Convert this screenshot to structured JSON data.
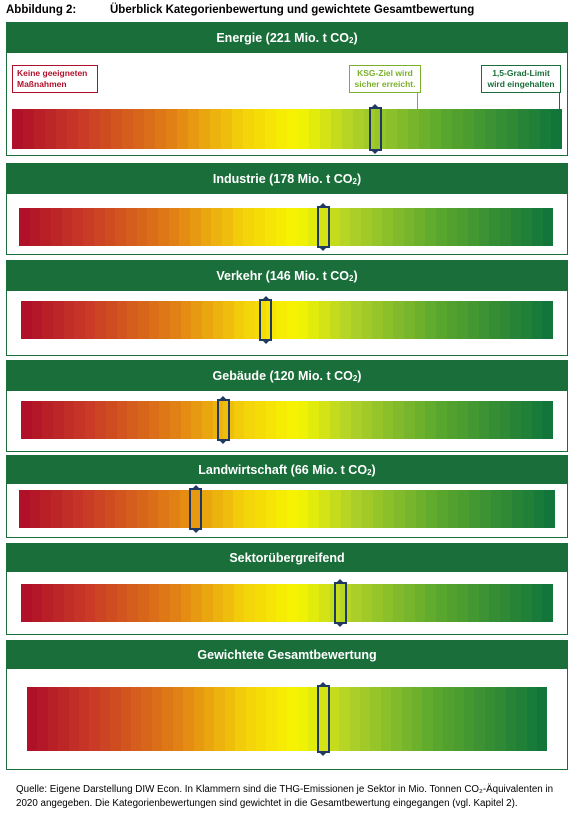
{
  "figure": {
    "label": "Abbildung 2:",
    "title": "Überblick Kategorienbewertung und gewichtete Gesamtbewertung"
  },
  "legend_callouts": {
    "left": [
      "Keine geeigneten",
      "Maßnahmen"
    ],
    "mid": [
      "KSG-Ziel wird",
      "sicher erreicht."
    ],
    "right": [
      "1,5-Grad-Limit",
      "wird eingehalten"
    ]
  },
  "colors": {
    "header_green": "#1a6e3a",
    "marker": "#1f3864",
    "callout_red": "#b0112a",
    "callout_lime": "#7ab02a",
    "callout_green": "#1a6e3a"
  },
  "chart_data": {
    "type": "bar",
    "scale": "red (left) to green (right)",
    "series": [
      {
        "name": "Energie",
        "emissions_label": "221 Mio. t CO₂",
        "score": 0.66
      },
      {
        "name": "Industrie",
        "emissions_label": "178 Mio. t CO₂",
        "score": 0.57
      },
      {
        "name": "Verkehr",
        "emissions_label": "146 Mio. t CO₂",
        "score": 0.46
      },
      {
        "name": "Gebäude",
        "emissions_label": "120 Mio. t CO₂",
        "score": 0.38
      },
      {
        "name": "Landwirtschaft",
        "emissions_label": "66 Mio. t CO₂",
        "score": 0.33
      },
      {
        "name": "Sektorübergreifend",
        "emissions_label": "",
        "score": 0.6
      },
      {
        "name": "Gewichtete Gesamtbewertung",
        "emissions_label": "",
        "score": 0.57
      }
    ]
  },
  "headers": [
    [
      "Energie (221 Mio. t CO",
      "2",
      ")"
    ],
    [
      "Industrie (178 Mio. t CO",
      "2",
      ")"
    ],
    [
      "Verkehr (146 Mio. t CO",
      "2",
      ")"
    ],
    [
      "Gebäude (120 Mio. t CO",
      "2",
      ")"
    ],
    [
      "Landwirtschaft (66 Mio. t CO",
      "2",
      ")"
    ],
    [
      "Sektorübergreifend",
      "",
      ""
    ],
    [
      "Gewichtete Gesamtbewertung",
      "",
      ""
    ]
  ],
  "source": "Quelle: Eigene Darstellung DIW Econ. In Klammern sind die THG-Emissionen je Sektor in Mio. Tonnen CO₂-Äquivalenten in 2020 angegeben. Die Kategorienbewertungen sind gewichtet in die Gesamtbewertung eingegangen (vgl. Kapitel 2)."
}
